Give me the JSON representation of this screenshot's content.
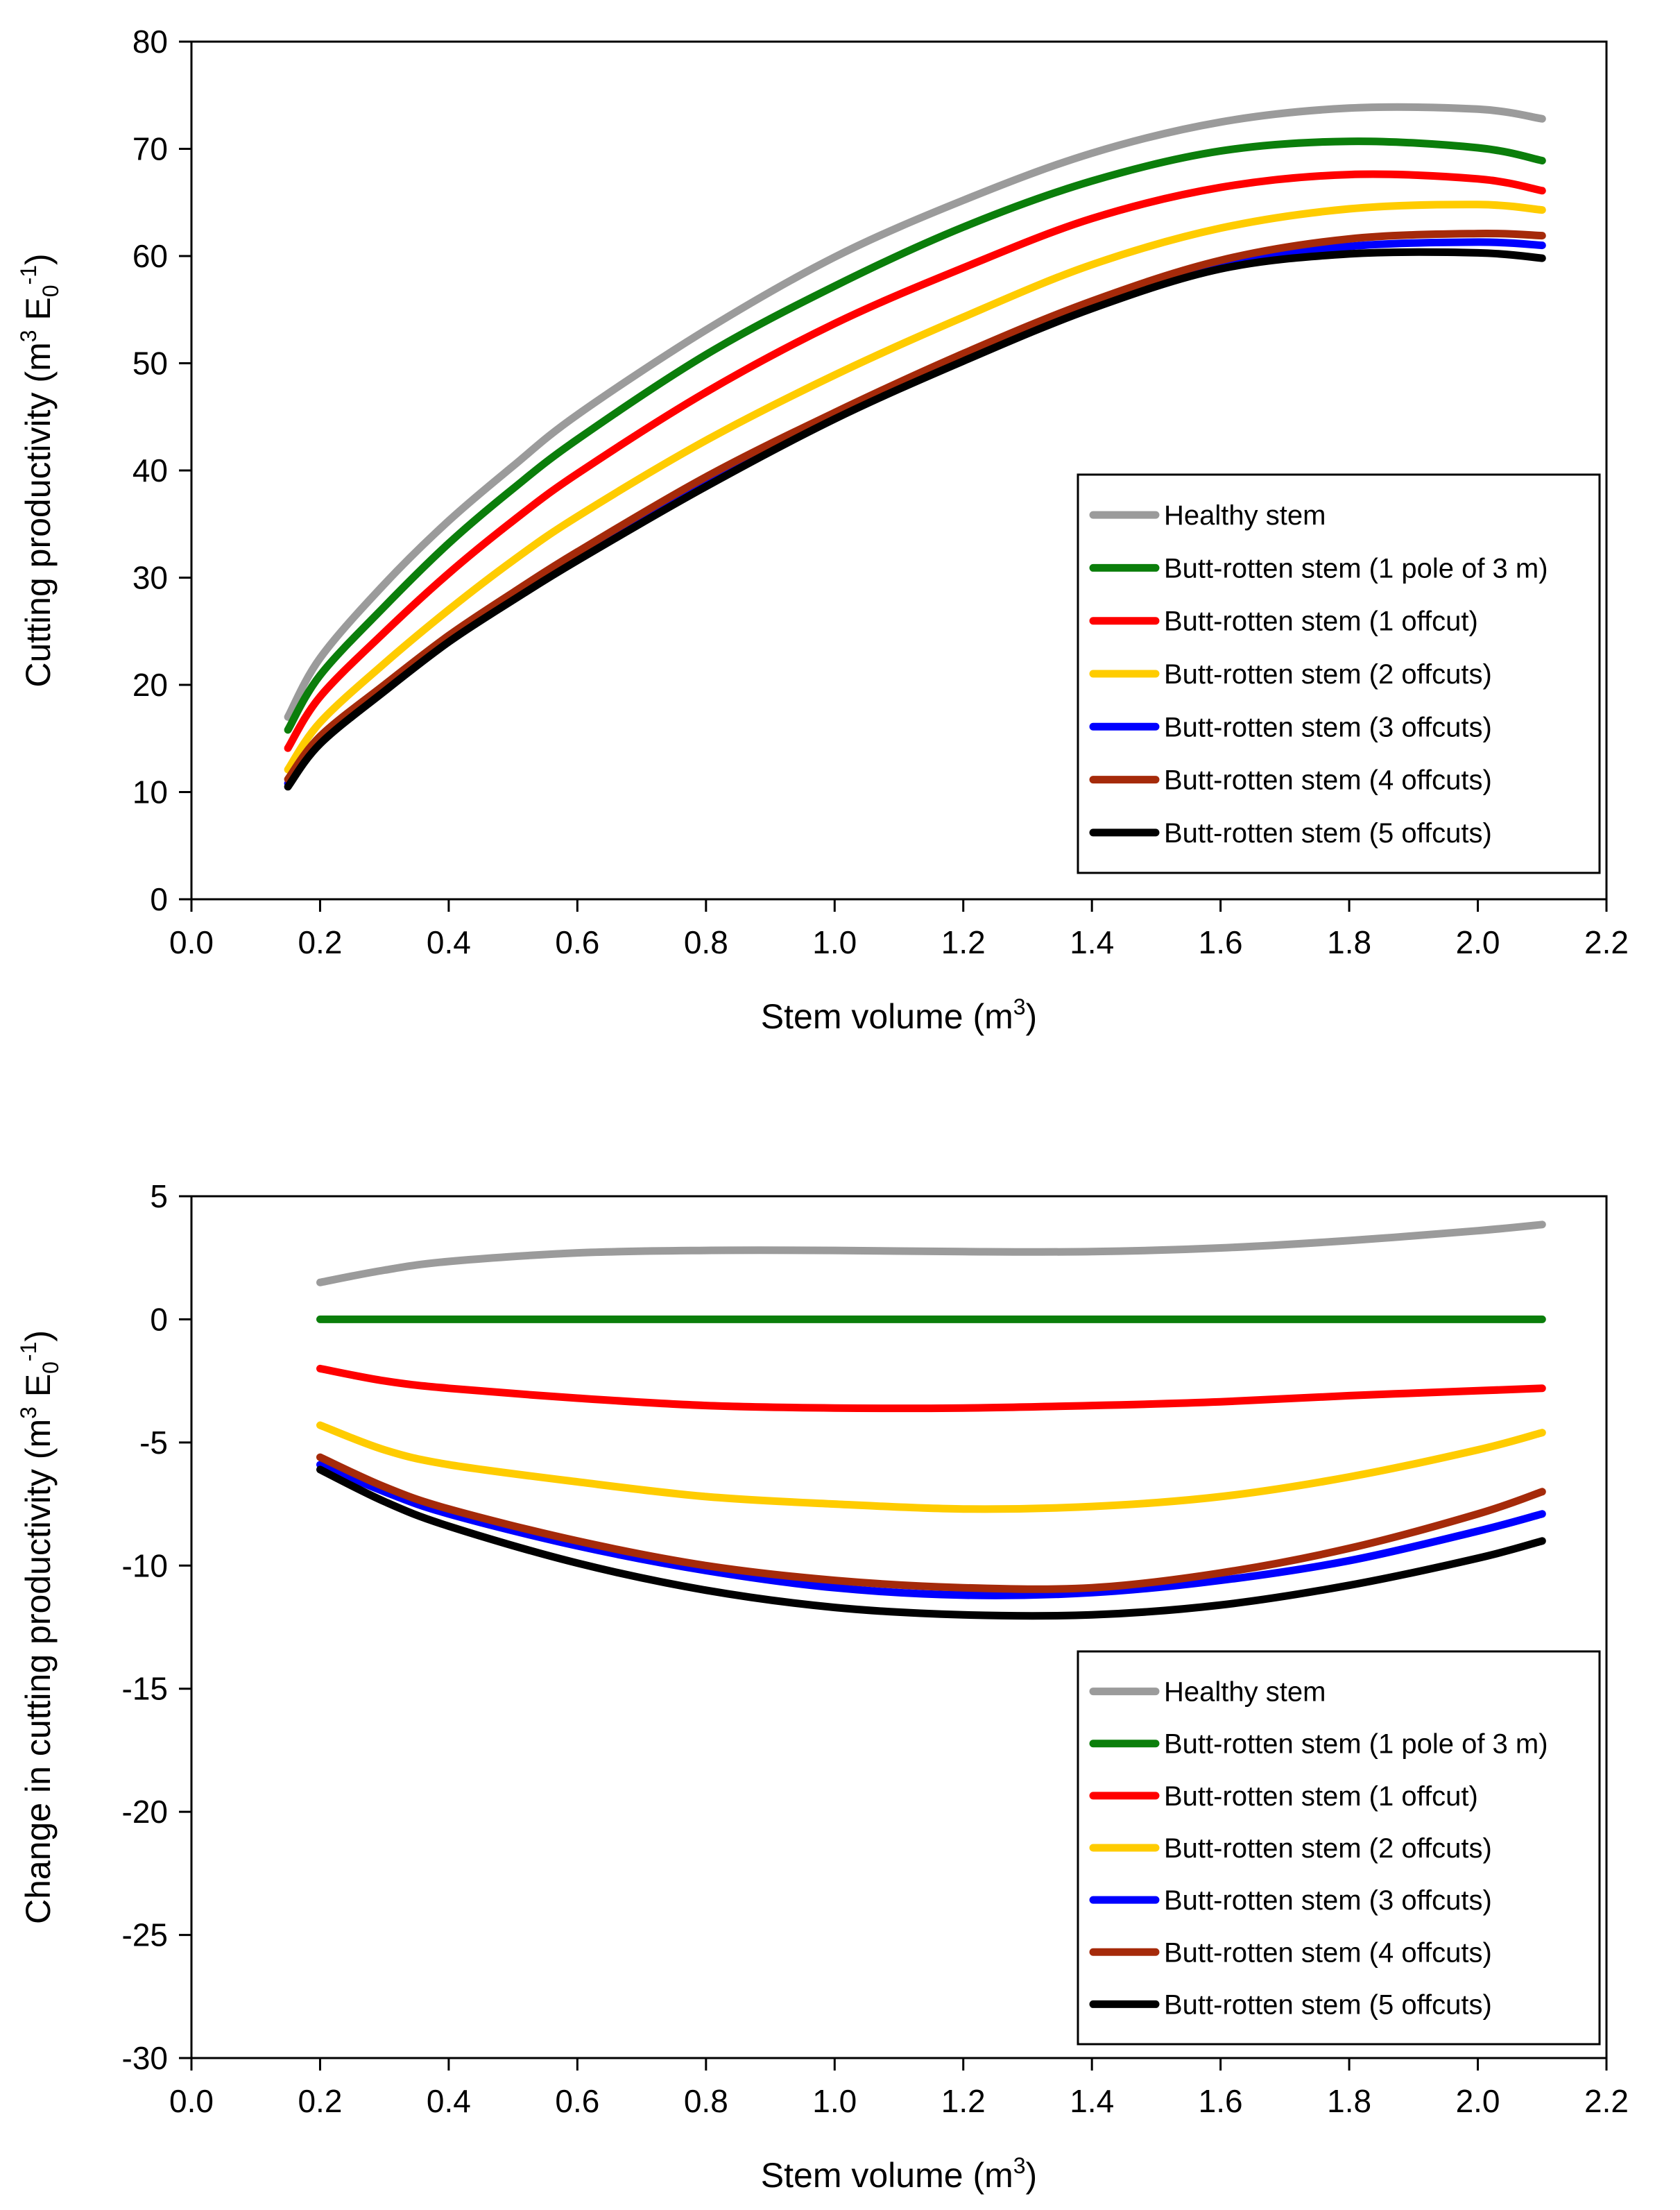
{
  "chart_data": [
    {
      "type": "line",
      "title": "",
      "xlabel": {
        "main": "Stem volume",
        "unit_open": "(m",
        "sup": "3",
        "unit_close": ")"
      },
      "ylabel": {
        "main": "Cutting productivity",
        "unit_open": "(m",
        "sup1": "3",
        "mid": " E",
        "sub": "0",
        "sup2": "-1",
        "unit_close": ")"
      },
      "xlim": [
        0.0,
        2.2
      ],
      "ylim": [
        0,
        80
      ],
      "xticks": [
        "0.0",
        "0.2",
        "0.4",
        "0.6",
        "0.8",
        "1.0",
        "1.2",
        "1.4",
        "1.6",
        "1.8",
        "2.0",
        "2.2"
      ],
      "yticks": [
        "0",
        "10",
        "20",
        "30",
        "40",
        "50",
        "60",
        "70",
        "80"
      ],
      "grid": false,
      "legend_position": "bottom-right",
      "x": [
        0.15,
        0.2,
        0.3,
        0.4,
        0.5,
        0.6,
        0.8,
        1.0,
        1.2,
        1.4,
        1.6,
        1.8,
        2.0,
        2.1
      ],
      "series": [
        {
          "name": "Healthy stem",
          "color": "#9b9b9b",
          "values": [
            17.0,
            22.5,
            29.4,
            35.3,
            40.4,
            45.2,
            53.1,
            59.9,
            65.2,
            69.6,
            72.5,
            73.8,
            73.7,
            72.8
          ]
        },
        {
          "name": "Butt-rotten stem (1 pole of 3 m)",
          "color": "#0b7e0b",
          "values": [
            15.8,
            20.9,
            27.3,
            33.2,
            38.3,
            42.9,
            50.8,
            57.2,
            62.7,
            67.0,
            69.8,
            70.7,
            70.1,
            68.9
          ]
        },
        {
          "name": "Butt-rotten stem (1 offcut)",
          "color": "#ff0000",
          "values": [
            14.1,
            18.9,
            24.9,
            30.4,
            35.3,
            39.7,
            47.3,
            53.7,
            58.9,
            63.5,
            66.4,
            67.6,
            67.2,
            66.1
          ]
        },
        {
          "name": "Butt-rotten stem (2 offcuts)",
          "color": "#ffcc00",
          "values": [
            12.1,
            16.5,
            22.0,
            27.0,
            31.6,
            35.7,
            42.8,
            48.9,
            54.3,
            59.2,
            62.6,
            64.4,
            64.8,
            64.3
          ]
        },
        {
          "name": "Butt-rotten stem (3 offcuts)",
          "color": "#0000ff",
          "values": [
            10.8,
            14.9,
            19.8,
            24.4,
            28.4,
            32.1,
            38.9,
            45.1,
            50.5,
            55.5,
            59.2,
            60.9,
            61.3,
            61.0
          ]
        },
        {
          "name": "Butt-rotten stem (4 offcuts)",
          "color": "#a52a0a",
          "values": [
            11.2,
            15.2,
            20.0,
            24.6,
            28.6,
            32.4,
            39.4,
            45.4,
            50.9,
            55.8,
            59.6,
            61.6,
            62.1,
            61.9
          ]
        },
        {
          "name": "Butt-rotten stem (5 offcuts)",
          "color": "#000000",
          "values": [
            10.5,
            14.5,
            19.4,
            24.0,
            27.9,
            31.6,
            38.5,
            44.8,
            50.2,
            55.1,
            58.8,
            60.2,
            60.3,
            59.8
          ]
        }
      ]
    },
    {
      "type": "line",
      "title": "",
      "xlabel": {
        "main": "Stem volume",
        "unit_open": "(m",
        "sup": "3",
        "unit_close": ")"
      },
      "ylabel": {
        "main": "Change in cutting productivity",
        "unit_open": "(m",
        "sup1": "3",
        "mid": " E",
        "sub": "0",
        "sup2": "-1",
        "unit_close": ")"
      },
      "xlim": [
        0.0,
        2.2
      ],
      "ylim": [
        -30,
        5
      ],
      "xticks": [
        "0.0",
        "0.2",
        "0.4",
        "0.6",
        "0.8",
        "1.0",
        "1.2",
        "1.4",
        "1.6",
        "1.8",
        "2.0",
        "2.2"
      ],
      "yticks": [
        "-30",
        "-25",
        "-20",
        "-15",
        "-10",
        "-5",
        "0",
        "5"
      ],
      "grid": false,
      "legend_position": "bottom-right",
      "x": [
        0.2,
        0.3,
        0.4,
        0.6,
        0.8,
        1.0,
        1.2,
        1.4,
        1.6,
        1.8,
        2.0,
        2.1
      ],
      "series": [
        {
          "name": "Healthy stem",
          "color": "#9b9b9b",
          "values": [
            1.5,
            2.0,
            2.35,
            2.7,
            2.8,
            2.8,
            2.75,
            2.75,
            2.9,
            3.2,
            3.6,
            3.85
          ]
        },
        {
          "name": "Butt-rotten stem (1 pole of 3 m)",
          "color": "#0b7e0b",
          "values": [
            0,
            0,
            0,
            0,
            0,
            0,
            0,
            0,
            0,
            0,
            0,
            0
          ]
        },
        {
          "name": "Butt-rotten stem (1 offcut)",
          "color": "#ff0000",
          "values": [
            -2.0,
            -2.5,
            -2.8,
            -3.2,
            -3.5,
            -3.6,
            -3.6,
            -3.5,
            -3.35,
            -3.1,
            -2.9,
            -2.8
          ]
        },
        {
          "name": "Butt-rotten stem (2 offcuts)",
          "color": "#ffcc00",
          "values": [
            -4.3,
            -5.3,
            -5.9,
            -6.6,
            -7.2,
            -7.5,
            -7.7,
            -7.6,
            -7.2,
            -6.4,
            -5.3,
            -4.6
          ]
        },
        {
          "name": "Butt-rotten stem (3 offcuts)",
          "color": "#0000ff",
          "values": [
            -5.9,
            -7.0,
            -7.9,
            -9.2,
            -10.2,
            -10.9,
            -11.2,
            -11.1,
            -10.6,
            -9.8,
            -8.6,
            -7.9
          ]
        },
        {
          "name": "Butt-rotten stem (4 offcuts)",
          "color": "#a52a0a",
          "values": [
            -5.6,
            -6.8,
            -7.7,
            -9.0,
            -10.0,
            -10.6,
            -10.9,
            -10.9,
            -10.3,
            -9.3,
            -7.9,
            -7.0
          ]
        },
        {
          "name": "Butt-rotten stem (5 offcuts)",
          "color": "#000000",
          "values": [
            -6.1,
            -7.4,
            -8.4,
            -9.9,
            -11.0,
            -11.7,
            -12.0,
            -12.0,
            -11.6,
            -10.8,
            -9.7,
            -9.0
          ]
        }
      ]
    }
  ]
}
